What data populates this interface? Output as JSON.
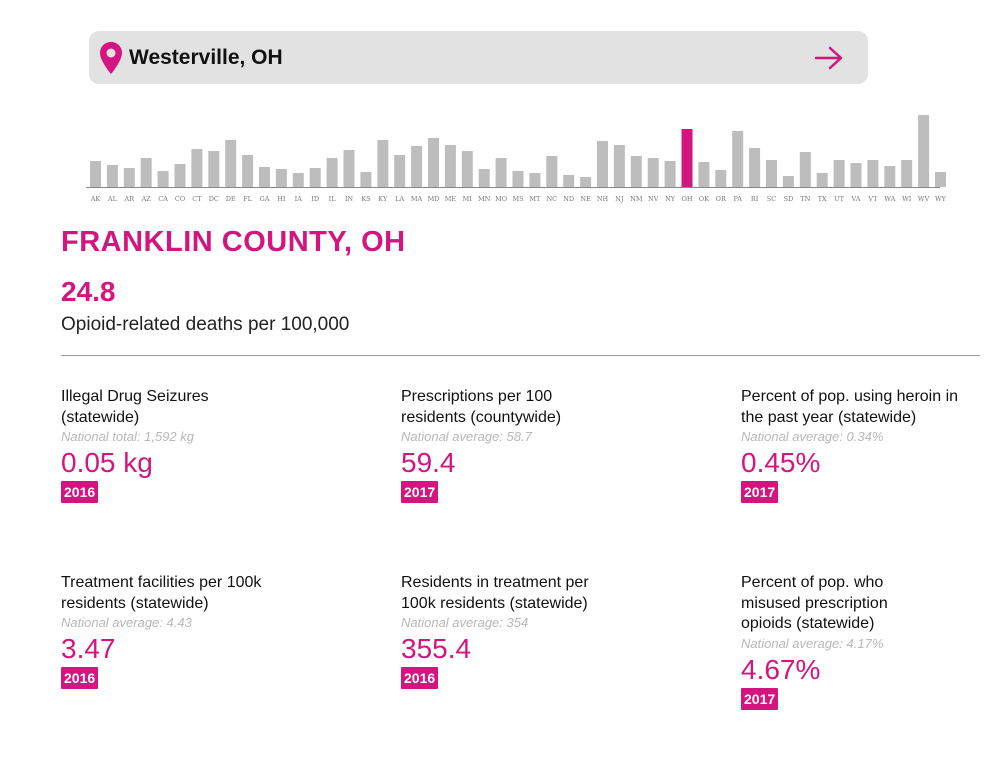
{
  "search": {
    "location": "Westerville, OH"
  },
  "chart_data": {
    "type": "bar",
    "categories": [
      "AK",
      "AL",
      "AR",
      "AZ",
      "CA",
      "CO",
      "CT",
      "DC",
      "DE",
      "FL",
      "GA",
      "HI",
      "IA",
      "ID",
      "IL",
      "IN",
      "KS",
      "KY",
      "LA",
      "MA",
      "MD",
      "ME",
      "MI",
      "MN",
      "MO",
      "MS",
      "MT",
      "NC",
      "ND",
      "NE",
      "NH",
      "NJ",
      "NM",
      "NV",
      "NY",
      "OH",
      "OK",
      "OR",
      "PA",
      "RI",
      "SC",
      "SD",
      "TN",
      "TX",
      "UT",
      "VA",
      "VT",
      "WA",
      "WI",
      "WV",
      "WY"
    ],
    "values": [
      26,
      22,
      19,
      29,
      16,
      23,
      38,
      36,
      47,
      32,
      20,
      18,
      14,
      19,
      29,
      37,
      15,
      47,
      32,
      41,
      49,
      42,
      36,
      18,
      29,
      16,
      14,
      31,
      12,
      10,
      46,
      42,
      31,
      29,
      26,
      58,
      25,
      17,
      56,
      39,
      27,
      11,
      35,
      14,
      27,
      24,
      27,
      21,
      27,
      72,
      15
    ],
    "highlight": "OH",
    "highlight_color": "#d4147f",
    "bar_color": "#bdbdbd"
  },
  "county": {
    "name": "FRANKLIN COUNTY, OH",
    "death_rate": "24.8",
    "death_rate_label": "Opioid-related deaths per 100,000"
  },
  "stats": [
    {
      "title": "Illegal Drug Seizures (statewide)",
      "subtitle": "National total: 1,592 kg",
      "value": "0.05 kg",
      "year": "2016"
    },
    {
      "title": "Prescriptions per 100 residents (countywide)",
      "subtitle": "National average: 58.7",
      "value": "59.4",
      "year": "2017"
    },
    {
      "title": "Percent of pop. using heroin in the past year (statewide)",
      "subtitle": "National average: 0.34%",
      "value": "0.45%",
      "year": "2017"
    },
    {
      "title": "Treatment facilities per 100k residents (statewide)",
      "subtitle": "National average: 4.43",
      "value": "3.47",
      "year": "2016"
    },
    {
      "title": "Residents in treatment per 100k residents (statewide)",
      "subtitle": "National average: 354",
      "value": "355.4",
      "year": "2016"
    },
    {
      "title": "Percent of pop. who misused prescription opioids (statewide)",
      "subtitle": "National average: 4.17%",
      "value": "4.67%",
      "year": "2017"
    }
  ],
  "colors": {
    "accent": "#d4147f",
    "search_bg": "#e2e2e2"
  },
  "icons": {
    "location": "map-pin-icon",
    "go": "arrow-right-icon"
  }
}
